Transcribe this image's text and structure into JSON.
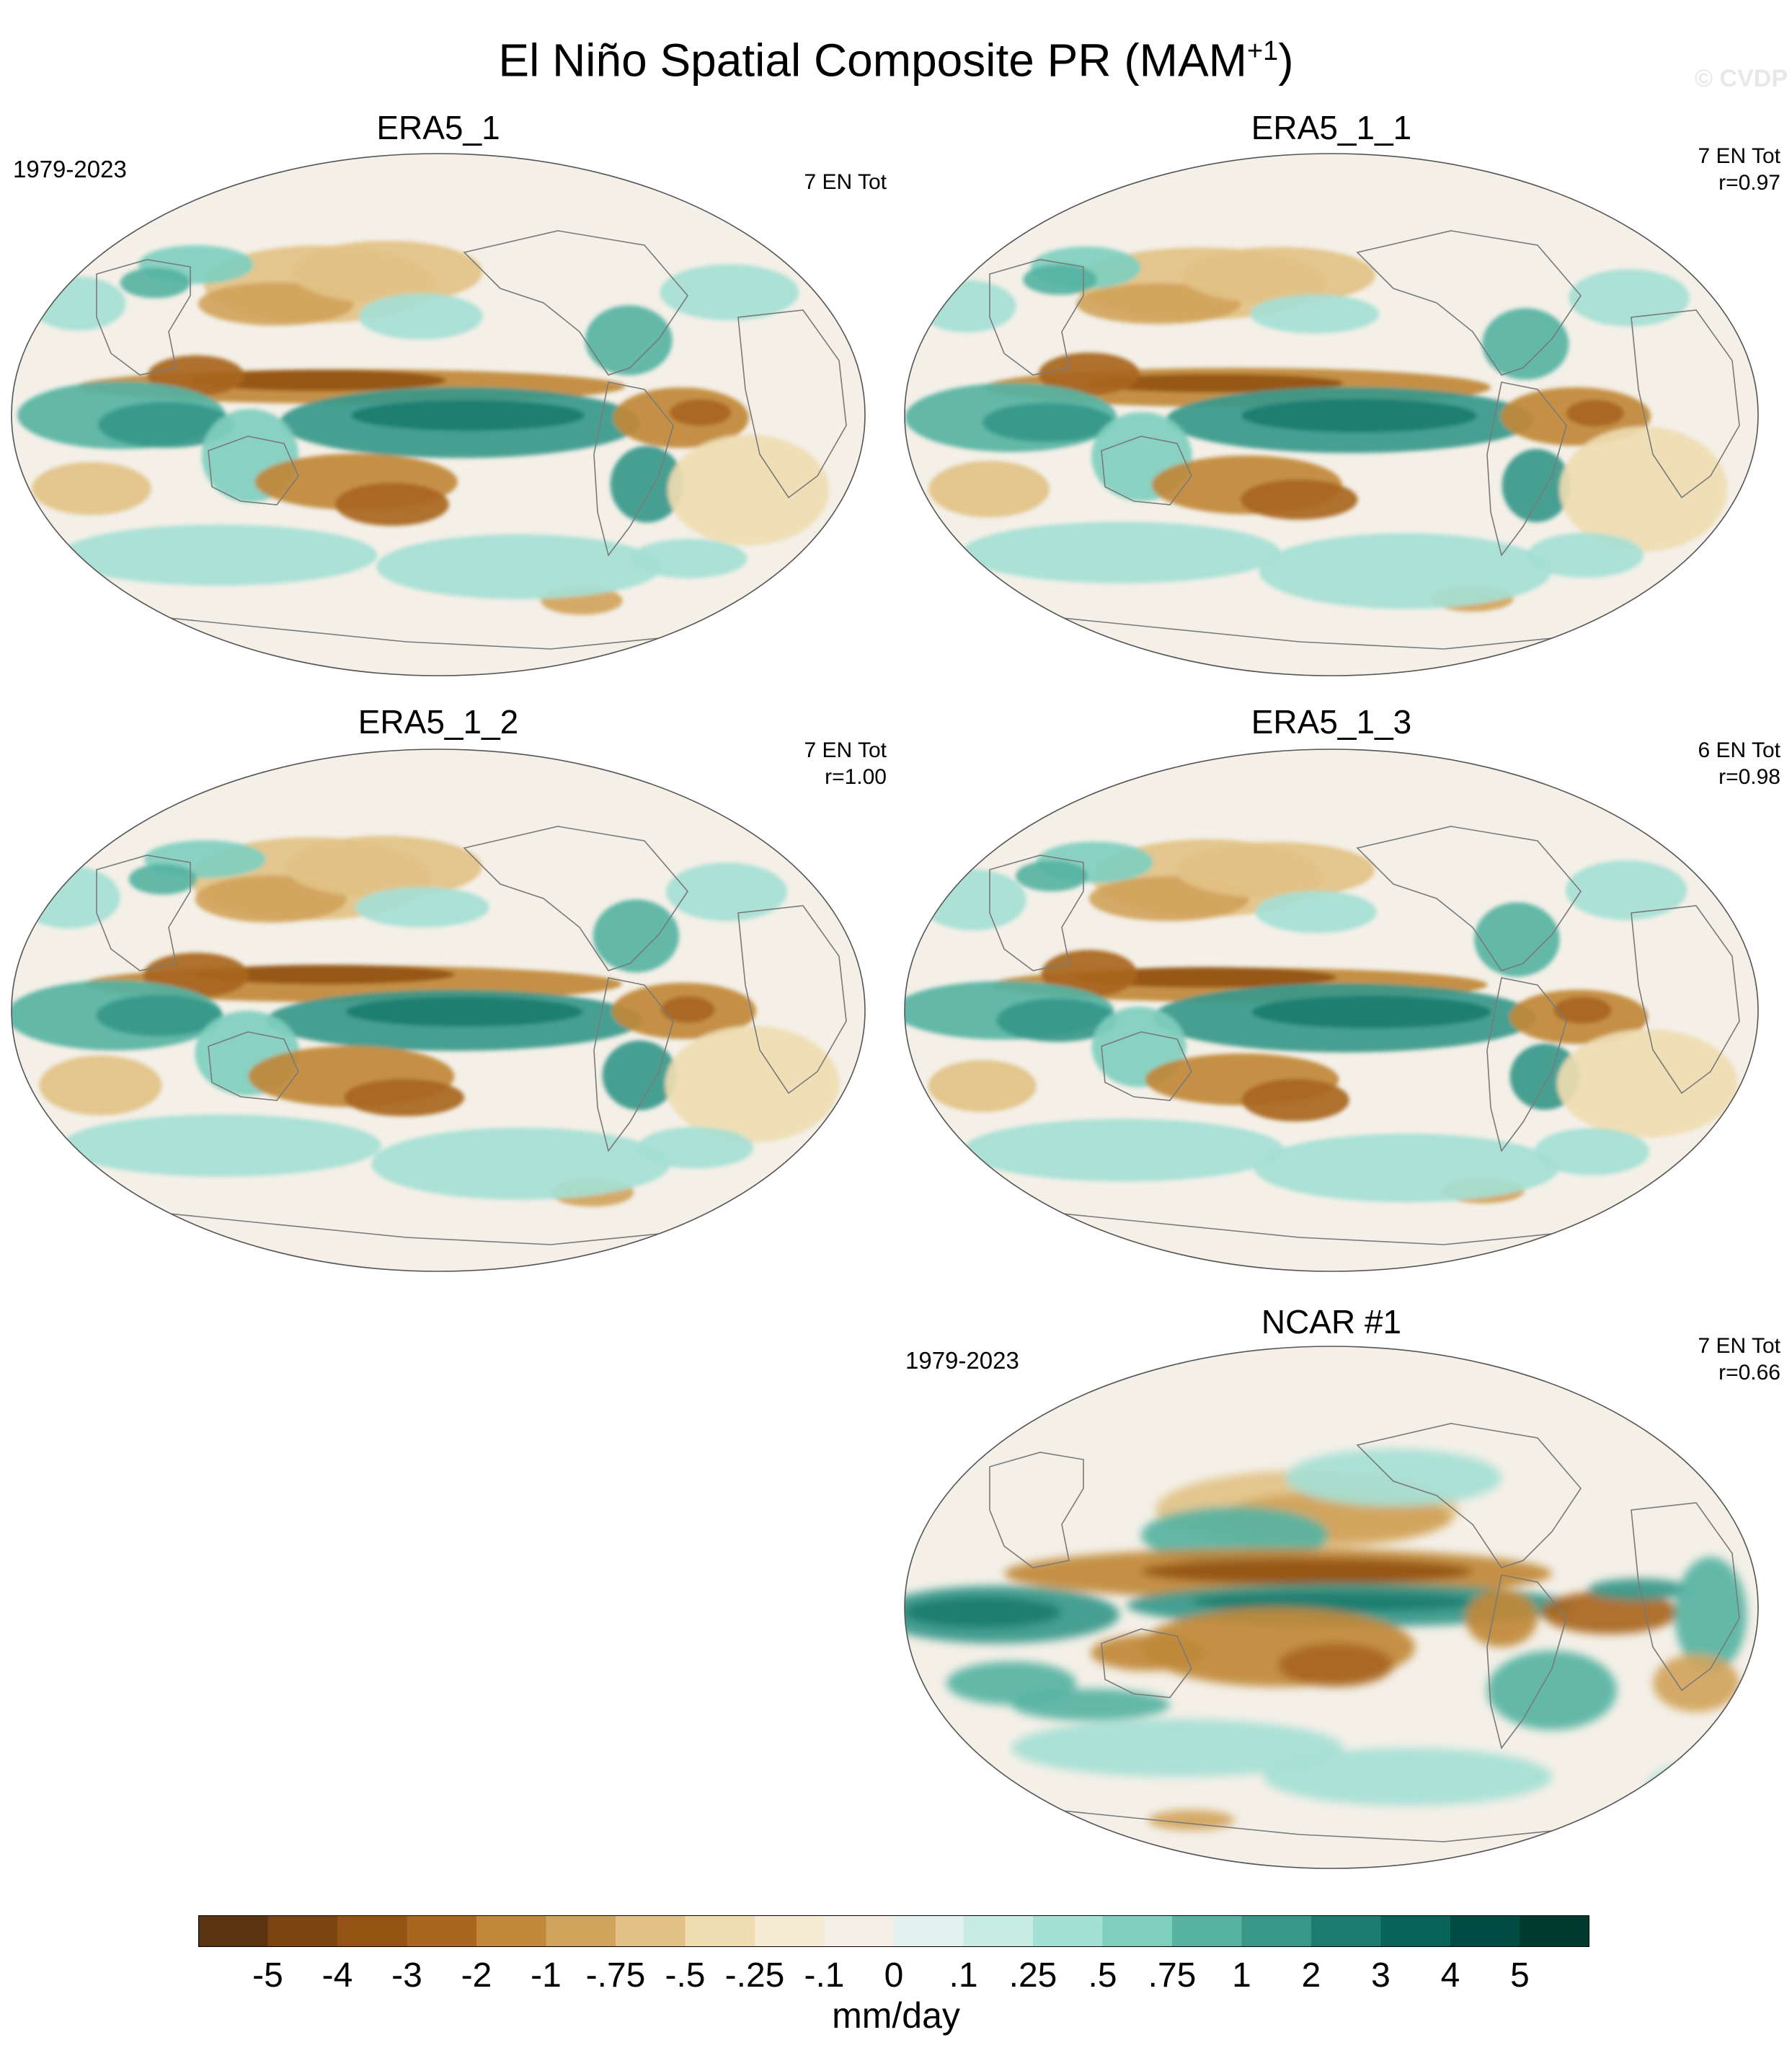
{
  "title": {
    "main": "El Niño Spatial Composite PR (MAM",
    "sup": "+1",
    "close": ")"
  },
  "watermark": "© CVDP",
  "panels": [
    {
      "name": "ERA5_1",
      "years": "1979-2023",
      "stat1": "7 EN Tot",
      "stat2": "",
      "variant": "obs"
    },
    {
      "name": "ERA5_1_1",
      "years": "",
      "stat1": "7 EN Tot",
      "stat2": "r=0.97",
      "variant": "obs"
    },
    {
      "name": "ERA5_1_2",
      "years": "",
      "stat1": "7 EN Tot",
      "stat2": "r=1.00",
      "variant": "obs"
    },
    {
      "name": "ERA5_1_3",
      "years": "",
      "stat1": "6 EN Tot",
      "stat2": "r=0.98",
      "variant": "obs"
    },
    {
      "name": "NCAR #1",
      "years": "1979-2023",
      "stat1": "7 EN Tot",
      "stat2": "r=0.66",
      "variant": "model"
    }
  ],
  "colorbar": {
    "units": "mm/day",
    "labels": [
      "-5",
      "-4",
      "-3",
      "-2",
      "-1",
      "-.75",
      "-.5",
      "-.25",
      "-.1",
      "0",
      ".1",
      ".25",
      ".5",
      ".75",
      "1",
      "2",
      "3",
      "4",
      "5"
    ],
    "colors": [
      "#5a3410",
      "#7a4510",
      "#925313",
      "#a8661e",
      "#c08838",
      "#d1a45c",
      "#e2c286",
      "#efdcb1",
      "#f5ead2",
      "#f4f0e8",
      "#e4f2ef",
      "#c8ebe3",
      "#a5e0d4",
      "#7fcfbf",
      "#56b3a2",
      "#37988a",
      "#1b7c6f",
      "#076459",
      "#014c42",
      "#003a2e"
    ]
  }
}
